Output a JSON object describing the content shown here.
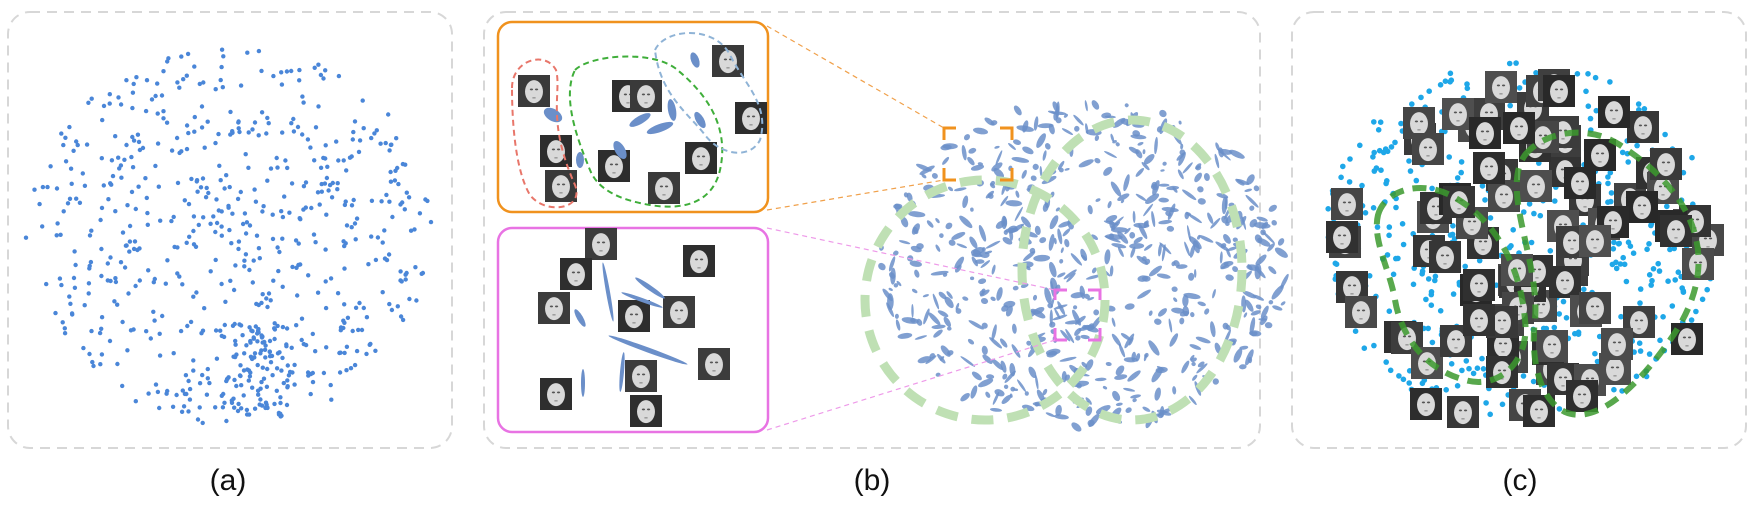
{
  "panels": [
    {
      "id": "a",
      "caption": "(a)"
    },
    {
      "id": "b",
      "caption": "(b)"
    },
    {
      "id": "c",
      "caption": "(c)"
    }
  ],
  "colors": {
    "panel_border": "#d7d7d7",
    "point": "#4a86d8",
    "ellipse": "#6b8fc9",
    "cyan_point": "#1ea7e8",
    "green_dash": "#3c9a2e",
    "light_green_dash": "#bfe0b4",
    "orange": "#f0921e",
    "magenta": "#e873e3",
    "red_dash": "#e8766a",
    "blue_dash": "#8fb3d6"
  },
  "icons": {
    "face_thumbnail": "face-thumbnail-icon"
  }
}
